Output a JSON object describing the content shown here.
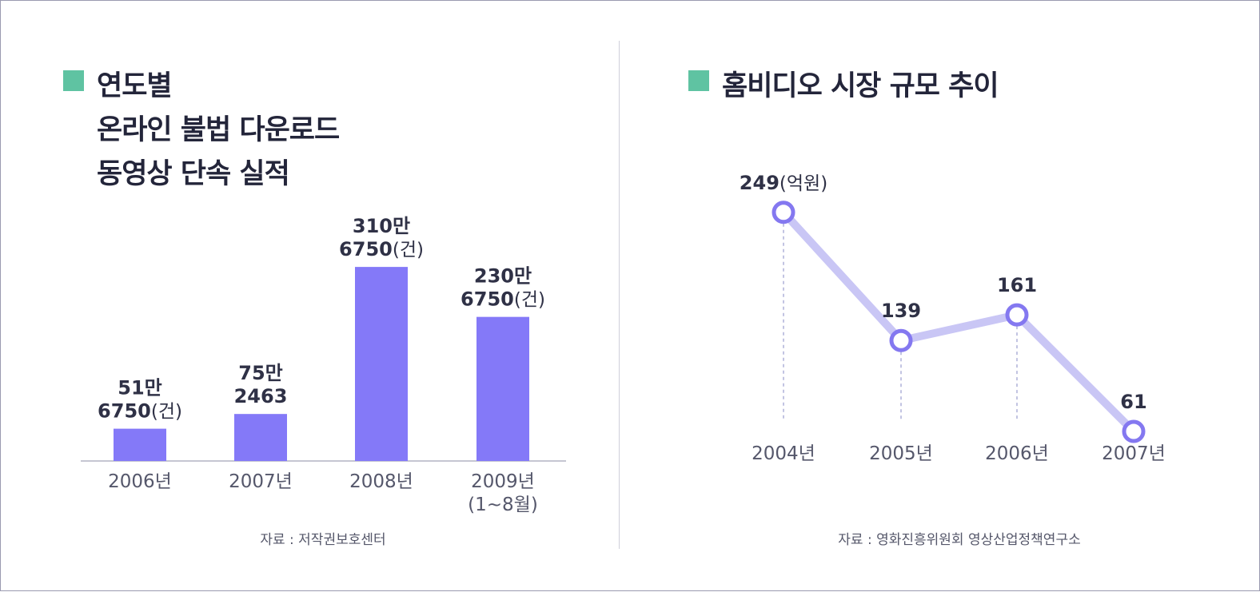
{
  "left": {
    "title_lines": [
      "연도별",
      "온라인 불법 다운로드",
      "동영상 단속 실적"
    ],
    "source": "자료 : 저작권보호센터",
    "accent_color": "#5fc3a2"
  },
  "right": {
    "title_lines": [
      "홈비디오 시장 규모 추이"
    ],
    "source": "자료 : 영화진흥위원회 영상산업정책연구소",
    "accent_color": "#5fc3a2"
  },
  "chart_data": [
    {
      "type": "bar",
      "title": "연도별 온라인 불법 다운로드 동영상 단속 실적",
      "unit": "건",
      "categories": [
        [
          "2006년"
        ],
        [
          "2007년"
        ],
        [
          "2008년"
        ],
        [
          "2009년",
          "(1~8월)"
        ]
      ],
      "values": [
        516750,
        752463,
        3106750,
        2306750
      ],
      "value_labels": [
        [
          {
            "t": "51만"
          },
          {
            "t": "6750",
            "s": "(건)"
          }
        ],
        [
          {
            "t": "75만"
          },
          {
            "t": "2463"
          }
        ],
        [
          {
            "t": "310만"
          },
          {
            "t": "6750",
            "s": "(건)"
          }
        ],
        [
          {
            "t": "230만"
          },
          {
            "t": "6750",
            "s": "(건)"
          }
        ]
      ],
      "bar_color": "#8479f8",
      "ylim": [
        0,
        3300000
      ]
    },
    {
      "type": "line",
      "title": "홈비디오 시장 규모 추이",
      "unit": "억원",
      "categories": [
        "2004년",
        "2005년",
        "2006년",
        "2007년"
      ],
      "values": [
        249,
        139,
        161,
        61
      ],
      "value_labels": [
        [
          {
            "t": "249",
            "s": "(억원)"
          }
        ],
        [
          {
            "t": "139"
          }
        ],
        [
          {
            "t": "161"
          }
        ],
        [
          {
            "t": "61"
          }
        ]
      ],
      "line_color": "#c9c6f5",
      "marker_color": "#8478f0",
      "ylim": [
        0,
        300
      ]
    }
  ]
}
